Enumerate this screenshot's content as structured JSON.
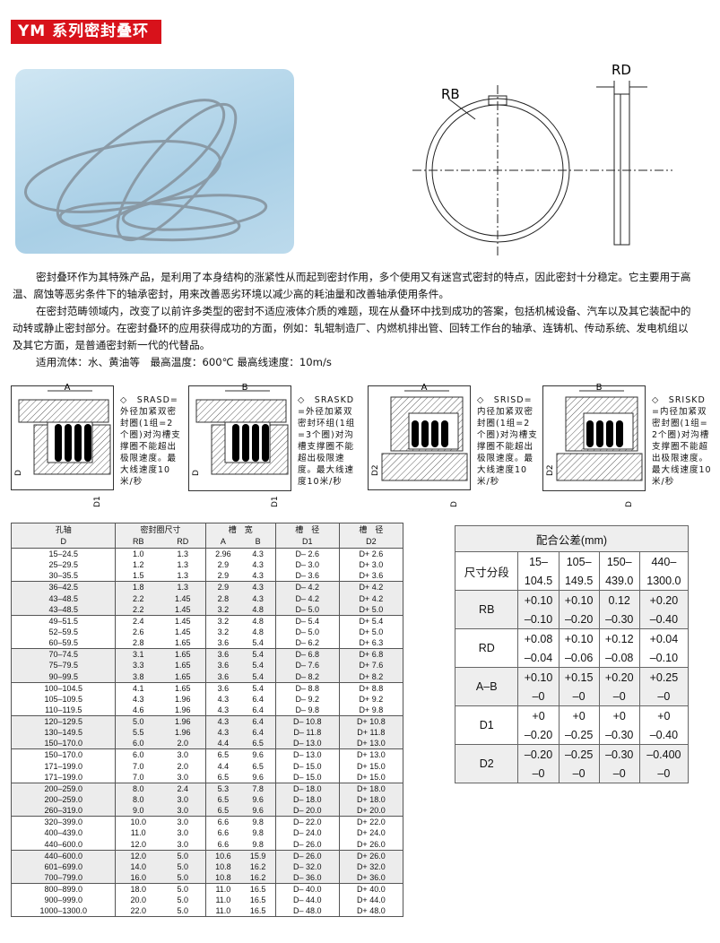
{
  "title": "YM 系列密封叠环",
  "ring_drawing": {
    "rb_label": "RB",
    "rd_label": "RD"
  },
  "description": {
    "p1a": "密封叠环作为其特殊产品，是利用了本身结构的涨紧性从而起到密封作用，多个使用又有迷宫式密封的特点，因此密封十分稳定。它主要用于高",
    "p1b": "温、腐蚀等恶劣条件下的轴承密封，用来改善恶劣环境以减少高的耗油量和改善轴承使用条件。",
    "p2a": "在密封范畴领域内，改变了以前许多类型的密封不适应液体介质的难题，现在从叠环中找到成功的答案，包括机械设备、汽车以及其它装配中的",
    "p2b": "动转或静止密封部分。在密封叠环的应用获得成功的方面，例如：轧辊制造厂、内燃机排出管、回转工作台的轴承、连铸机、传动系统、发电机组以",
    "p2c": "及其它方面，是普通密封新一代的代替品。",
    "p3": "适用流体：水、黄油等　最高温度：600℃  最高线速度：10m/s"
  },
  "diagrams": [
    {
      "dim": "A",
      "d_label": "D",
      "d1_label": "D1",
      "text": "◇　SRASD=外径加紧双密封圈(1组=2个圈)对沟槽支撑圈不能超出极限速度。最大线速度10米/秒"
    },
    {
      "dim": "B",
      "d_label": "D",
      "d1_label": "D1",
      "text": "◇　SRASKD=外径加紧双密封环组(1组=3个圈)对沟槽支撑圈不能超出极限速度。最大线速度10米/秒"
    },
    {
      "dim": "A",
      "d_label": "D2",
      "d1_label": "D",
      "text": "◇　SRISD=内径加紧双密封圈(1组=2个圈)对沟槽支撑圈不能超出极限速度。最大线速度10米/秒"
    },
    {
      "dim": "B",
      "d_label": "D2",
      "d1_label": "D",
      "text": "◇　SRISKD=内径加紧双密封圈(1组=2个圈)对沟槽支撑圈不能超出极限速度。最大线速度10米/秒"
    }
  ],
  "size_table": {
    "headers_top": [
      "孔轴",
      "密封圈尺寸",
      "槽　宽",
      "槽　径",
      "槽　径"
    ],
    "headers_sub": [
      "D",
      "RB",
      "RD",
      "A",
      "B",
      "D1",
      "D2"
    ],
    "rows": [
      [
        "15–24.5",
        "1.0",
        "1.3",
        "2.96",
        "4.3",
        "D– 2.6",
        "D+ 2.6"
      ],
      [
        "25–29.5",
        "1.2",
        "1.3",
        "2.9",
        "4.3",
        "D– 3.0",
        "D+ 3.0"
      ],
      [
        "30–35.5",
        "1.5",
        "1.3",
        "2.9",
        "4.3",
        "D– 3.6",
        "D+ 3.6"
      ],
      [
        "36–42.5",
        "1.8",
        "1.3",
        "2.9",
        "4.3",
        "D– 4.2",
        "D+ 4.2"
      ],
      [
        "43–48.5",
        "2.2",
        "1.45",
        "2.8",
        "4.3",
        "D– 4.2",
        "D+ 4.2"
      ],
      [
        "43–48.5",
        "2.2",
        "1.45",
        "3.2",
        "4.8",
        "D– 5.0",
        "D+ 5.0"
      ],
      [
        "49–51.5",
        "2.4",
        "1.45",
        "3.2",
        "4.8",
        "D– 5.4",
        "D+ 5.4"
      ],
      [
        "52–59.5",
        "2.6",
        "1.45",
        "3.2",
        "4.8",
        "D– 5.0",
        "D+ 5.0"
      ],
      [
        "60–59.5",
        "2.8",
        "1.65",
        "3.6",
        "5.4",
        "D– 6.2",
        "D+ 6.3"
      ],
      [
        "70–74.5",
        "3.1",
        "1.65",
        "3.6",
        "5.4",
        "D– 6.8",
        "D+ 6.8"
      ],
      [
        "75–79.5",
        "3.3",
        "1.65",
        "3.6",
        "5.4",
        "D– 7.6",
        "D+ 7.6"
      ],
      [
        "90–99.5",
        "3.8",
        "1.65",
        "3.6",
        "5.4",
        "D– 8.2",
        "D+ 8.2"
      ],
      [
        "100–104.5",
        "4.1",
        "1.65",
        "3.6",
        "5.4",
        "D– 8.8",
        "D+ 8.8"
      ],
      [
        "105–109.5",
        "4.3",
        "1.96",
        "4.3",
        "6.4",
        "D– 9.2",
        "D+ 9.2"
      ],
      [
        "110–119.5",
        "4.6",
        "1.96",
        "4.3",
        "6.4",
        "D– 9.8",
        "D+ 9.8"
      ],
      [
        "120–129.5",
        "5.0",
        "1.96",
        "4.3",
        "6.4",
        "D– 10.8",
        "D+ 10.8"
      ],
      [
        "130–149.5",
        "5.5",
        "1.96",
        "4.3",
        "6.4",
        "D– 11.8",
        "D+ 11.8"
      ],
      [
        "150–170.0",
        "6.0",
        "2.0",
        "4.4",
        "6.5",
        "D– 13.0",
        "D+ 13.0"
      ],
      [
        "150–170.0",
        "6.0",
        "3.0",
        "6.5",
        "9.6",
        "D– 13.0",
        "D+ 13.0"
      ],
      [
        "171–199.0",
        "7.0",
        "2.0",
        "4.4",
        "6.5",
        "D– 15.0",
        "D+ 15.0"
      ],
      [
        "171–199.0",
        "7.0",
        "3.0",
        "6.5",
        "9.6",
        "D– 15.0",
        "D+ 15.0"
      ],
      [
        "200–259.0",
        "8.0",
        "2.4",
        "5.3",
        "7.8",
        "D– 18.0",
        "D+ 18.0"
      ],
      [
        "200–259.0",
        "8.0",
        "3.0",
        "6.5",
        "9.6",
        "D– 18.0",
        "D+ 18.0"
      ],
      [
        "260–319.0",
        "9.0",
        "3.0",
        "6.5",
        "9.6",
        "D– 20.0",
        "D+ 20.0"
      ],
      [
        "320–399.0",
        "10.0",
        "3.0",
        "6.6",
        "9.8",
        "D– 22.0",
        "D+ 22.0"
      ],
      [
        "400–439.0",
        "11.0",
        "3.0",
        "6.6",
        "9.8",
        "D– 24.0",
        "D+ 24.0"
      ],
      [
        "440–600.0",
        "12.0",
        "3.0",
        "6.6",
        "9.8",
        "D– 26.0",
        "D+ 26.0"
      ],
      [
        "440–600.0",
        "12.0",
        "5.0",
        "10.6",
        "15.9",
        "D– 26.0",
        "D+ 26.0"
      ],
      [
        "601–699.0",
        "14.0",
        "5.0",
        "10.8",
        "16.2",
        "D– 32.0",
        "D+ 32.0"
      ],
      [
        "700–799.0",
        "16.0",
        "5.0",
        "10.8",
        "16.2",
        "D– 36.0",
        "D+ 36.0"
      ],
      [
        "800–899.0",
        "18.0",
        "5.0",
        "11.0",
        "16.5",
        "D– 40.0",
        "D+ 40.0"
      ],
      [
        "900–999.0",
        "20.0",
        "5.0",
        "11.0",
        "16.5",
        "D– 44.0",
        "D+ 44.0"
      ],
      [
        "1000–1300.0",
        "22.0",
        "5.0",
        "11.0",
        "16.5",
        "D– 48.0",
        "D+ 48.0"
      ]
    ]
  },
  "tolerance_table": {
    "title": "配合公差(mm)",
    "size_label": "尺寸分段",
    "ranges": [
      [
        "15–",
        "104.5"
      ],
      [
        "105–",
        "149.5"
      ],
      [
        "150–",
        "439.0"
      ],
      [
        "440–",
        "1300.0"
      ]
    ],
    "rows": [
      {
        "name": "RB",
        "upper": [
          "+0.10",
          "+0.10",
          "0.12",
          "+0.20"
        ],
        "lower": [
          "–0.10",
          "–0.20",
          "–0.30",
          "–0.40"
        ]
      },
      {
        "name": "RD",
        "upper": [
          "+0.08",
          "+0.10",
          "+0.12",
          "+0.04"
        ],
        "lower": [
          "–0.04",
          "–0.06",
          "–0.08",
          "–0.10"
        ]
      },
      {
        "name": "A–B",
        "upper": [
          "+0.10",
          "+0.15",
          "+0.20",
          "+0.25"
        ],
        "lower": [
          "–0",
          "–0",
          "–0",
          "–0"
        ]
      },
      {
        "name": "D1",
        "upper": [
          "+0",
          "+0",
          "+0",
          "+0"
        ],
        "lower": [
          "–0.20",
          "–0.25",
          "–0.30",
          "–0.40"
        ]
      },
      {
        "name": "D2",
        "upper": [
          "–0.20",
          "–0.25",
          "–0.30",
          "–0.400"
        ],
        "lower": [
          "–0",
          "–0",
          "–0",
          "–0"
        ]
      }
    ]
  }
}
